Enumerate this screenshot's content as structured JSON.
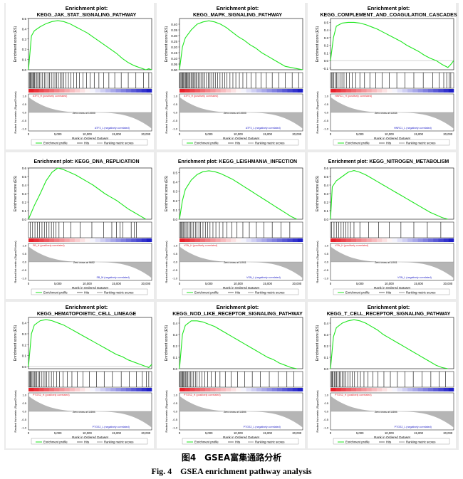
{
  "figure": {
    "caption_cn": "图4　GSEA富集通路分析",
    "caption_en": "Fig. 4　GSEA enrichment pathway analysis"
  },
  "colors": {
    "curve": "#1ee61e",
    "hits": "#000000",
    "metric_fill": "#a8a8a8",
    "pos": "#e8202a",
    "neg": "#2020c8"
  },
  "common": {
    "es_ylabel": "Enrichment score (ES)",
    "metric_ylabel": "Ranked list metric (Signal2Noise)",
    "xlabel": "Rank in Ordered Dataset",
    "legend": [
      "Enrichment profile",
      "Hits",
      "Ranking metric scores"
    ],
    "x_ticks": [
      "0",
      "5,000",
      "10,000",
      "15,000",
      "20,000"
    ],
    "metric_ticks": [
      "1.0",
      "0.5",
      "0.0",
      "-0.5",
      "-1.0"
    ]
  },
  "chart_data": [
    {
      "type": "line",
      "title_top": "Enrichment plot:",
      "title": "KEGG_JAK_STAT_SIGNALING_PATHWAY",
      "ylim": [
        0,
        0.5
      ],
      "y_ticks": [
        "0.5",
        "0.4",
        "0.3",
        "0.2",
        "0.1",
        "0.0"
      ],
      "pos_label": "ATF3_H (positively correlated)",
      "neg_label": "ATF3_L (negatively correlated)",
      "zero_cross": "Zero cross at 10000",
      "x": [
        0,
        500,
        1000,
        2000,
        3000,
        4000,
        5000,
        6000,
        7000,
        8000,
        9000,
        10000,
        11000,
        12000,
        13000,
        14000,
        15000,
        16000,
        17000,
        18000,
        19000,
        20000,
        20500,
        21000
      ],
      "y": [
        0,
        0.33,
        0.38,
        0.42,
        0.45,
        0.47,
        0.48,
        0.47,
        0.45,
        0.42,
        0.39,
        0.36,
        0.32,
        0.28,
        0.24,
        0.2,
        0.16,
        0.11,
        0.07,
        0.04,
        0.02,
        0.0,
        0.01,
        0.0
      ],
      "hits": [
        150,
        300,
        450,
        600,
        750,
        900,
        1050,
        1250,
        1450,
        1650,
        1900,
        2150,
        2400,
        2700,
        3000,
        3300,
        3600,
        3900,
        4200,
        4500,
        4800,
        5100,
        5400,
        5700,
        6000,
        6400,
        6800,
        7200,
        7700,
        8200,
        8700,
        9300,
        9900,
        10500,
        11200,
        12000,
        12800,
        13700,
        14700,
        15800,
        17000,
        18300,
        19600,
        20500
      ]
    },
    {
      "type": "line",
      "title_top": "Enrichment plot:",
      "title": "KEGG_MAPK_SIGNALING_PATHWAY",
      "ylim": [
        0,
        0.45
      ],
      "y_ticks": [
        "0.40",
        "0.35",
        "0.30",
        "0.25",
        "0.20",
        "0.15",
        "0.10",
        "0.05",
        "0.00"
      ],
      "pos_label": "ATF3_H (positively correlated)",
      "neg_label": "ATF3_L (negatively correlated)",
      "zero_cross": "Zero cross at 10000",
      "x": [
        0,
        500,
        1000,
        2000,
        3000,
        4000,
        5000,
        6000,
        7000,
        8000,
        9000,
        10000,
        11000,
        12000,
        13000,
        14000,
        15000,
        16000,
        17000,
        18000,
        19000,
        20000,
        21000
      ],
      "y": [
        0,
        0.2,
        0.28,
        0.35,
        0.4,
        0.42,
        0.43,
        0.42,
        0.4,
        0.37,
        0.33,
        0.29,
        0.26,
        0.22,
        0.19,
        0.15,
        0.12,
        0.09,
        0.06,
        0.03,
        0.02,
        0.01,
        0.0
      ],
      "hits": [
        100,
        250,
        400,
        550,
        700,
        850,
        1000,
        1150,
        1300,
        1450,
        1600,
        1800,
        2000,
        2200,
        2400,
        2600,
        2800,
        3000,
        3250,
        3500,
        3750,
        4000,
        4300,
        4600,
        4900,
        5200,
        5500,
        5800,
        6100,
        6500,
        6900,
        7300,
        7700,
        8100,
        8600,
        9100,
        9600,
        10200,
        10800,
        11500,
        12200,
        13000,
        13900,
        14800,
        15800,
        16900,
        18000,
        19200,
        20300
      ]
    },
    {
      "type": "line",
      "title_top": "Enrichment plot:",
      "title": "KEGG_COMPLEMENT_AND_COAGULATION_CASCADES",
      "ylim": [
        -0.12,
        0.55
      ],
      "y_ticks": [
        "0.5",
        "0.4",
        "0.3",
        "0.2",
        "0.1",
        "0.0",
        "-0.1"
      ],
      "pos_label": "HNRC1_H (positively correlated)",
      "neg_label": "HNRC1_L (negatively correlated)",
      "zero_cross": "Zero cross at 11434",
      "x": [
        0,
        500,
        1000,
        2000,
        3000,
        4000,
        5000,
        6000,
        7000,
        8000,
        9000,
        10000,
        11000,
        12000,
        13000,
        14000,
        15000,
        16000,
        17000,
        18000,
        19000,
        20000,
        20500,
        21000
      ],
      "y": [
        0,
        0.3,
        0.45,
        0.49,
        0.5,
        0.5,
        0.49,
        0.47,
        0.44,
        0.41,
        0.37,
        0.33,
        0.29,
        0.25,
        0.2,
        0.16,
        0.12,
        0.07,
        0.03,
        0.0,
        -0.05,
        -0.09,
        -0.05,
        0.0
      ],
      "hits": [
        150,
        350,
        550,
        800,
        1050,
        1300,
        1600,
        1950,
        2300,
        2700,
        3200,
        3700,
        4300,
        5000,
        5800,
        6700,
        7700,
        8800,
        10000,
        11300,
        12700,
        14200,
        15800,
        17400,
        18500,
        19300,
        19800,
        20200,
        20500
      ]
    },
    {
      "type": "line",
      "title_top": "",
      "title": "Enrichment plot: KEGG_DNA_REPLICATION",
      "ylim": [
        0,
        0.6
      ],
      "y_ticks": [
        "0.6",
        "0.5",
        "0.4",
        "0.3",
        "0.2",
        "0.1",
        "0.0"
      ],
      "pos_label": "SB_H (positively correlated)",
      "neg_label": "SB_M (negatively correlated)",
      "zero_cross": "Zero cross at 9652",
      "x": [
        0,
        500,
        1000,
        2000,
        3000,
        4000,
        5000,
        6000,
        7000,
        8000,
        9000,
        10000,
        11000,
        12000,
        13000,
        14000,
        15000,
        16000,
        17000,
        18000,
        19000,
        20000
      ],
      "y": [
        0,
        0.08,
        0.16,
        0.3,
        0.45,
        0.55,
        0.6,
        0.58,
        0.55,
        0.52,
        0.48,
        0.44,
        0.4,
        0.35,
        0.3,
        0.26,
        0.22,
        0.17,
        0.12,
        0.08,
        0.04,
        0.0
      ],
      "hits": [
        300,
        700,
        1100,
        1500,
        1900,
        2300,
        2700,
        3100,
        3500,
        3900,
        4300,
        4700,
        5200,
        6000,
        7200,
        8800,
        10800,
        12800,
        14200,
        15000,
        15600,
        16100,
        17500,
        18000,
        18400
      ]
    },
    {
      "type": "line",
      "title_top": "",
      "title": "Enrichment plot: KEGG_LEISHMANIA_INFECTION",
      "ylim": [
        0,
        0.55
      ],
      "y_ticks": [
        "0.5",
        "0.4",
        "0.3",
        "0.2",
        "0.1",
        "0.0"
      ],
      "pos_label": "VSN_H (positively correlated)",
      "neg_label": "VSN_L (negatively correlated)",
      "zero_cross": "Zero cross at 11931",
      "x": [
        0,
        500,
        1000,
        2000,
        3000,
        4000,
        5000,
        6000,
        7000,
        8000,
        9000,
        10000,
        11000,
        12000,
        13000,
        14000,
        15000,
        16000,
        17000,
        18000,
        19000,
        20000
      ],
      "y": [
        0,
        0.2,
        0.32,
        0.42,
        0.48,
        0.51,
        0.52,
        0.51,
        0.49,
        0.46,
        0.43,
        0.39,
        0.35,
        0.31,
        0.27,
        0.23,
        0.19,
        0.15,
        0.11,
        0.07,
        0.03,
        0.0
      ],
      "hits": [
        150,
        300,
        500,
        700,
        900,
        1100,
        1350,
        1600,
        1850,
        2100,
        2400,
        2700,
        3000,
        3300,
        3600,
        4000,
        4400,
        4800,
        5200,
        5700,
        6200,
        6800,
        7400,
        8100,
        8900,
        9800,
        10800,
        11900,
        13100,
        14400,
        15800,
        17300,
        18800
      ]
    },
    {
      "type": "line",
      "title_top": "",
      "title": "Enrichment plot: KEGG_NITROGEN_METABOLISM",
      "ylim": [
        0,
        0.6
      ],
      "y_ticks": [
        "0.6",
        "0.5",
        "0.4",
        "0.3",
        "0.2",
        "0.1",
        "0.0"
      ],
      "pos_label": "VSN_H (positively correlated)",
      "neg_label": "VSN_L (negatively correlated)",
      "zero_cross": "Zero cross at 11931",
      "x": [
        0,
        300,
        1000,
        2000,
        3000,
        4000,
        5000,
        6000,
        7000,
        8000,
        9000,
        10000,
        11000,
        12000,
        13000,
        14000,
        15000,
        16000,
        17000,
        18000,
        19000,
        20000
      ],
      "y": [
        0,
        0.38,
        0.45,
        0.5,
        0.55,
        0.57,
        0.55,
        0.52,
        0.48,
        0.44,
        0.4,
        0.36,
        0.32,
        0.28,
        0.24,
        0.2,
        0.16,
        0.12,
        0.08,
        0.05,
        0.02,
        0.0
      ],
      "hits": [
        200,
        600,
        1000,
        1400,
        1800,
        2200,
        2600,
        3000,
        3400,
        4000,
        5000,
        6500,
        8200,
        10000,
        12000,
        14200,
        16500,
        18800
      ]
    },
    {
      "type": "line",
      "title_top": "Enrichment plot:",
      "title": "KEGG_HEMATOPOIETIC_CELL_LINEAGE",
      "ylim": [
        -0.02,
        0.45
      ],
      "y_ticks": [
        "0.4",
        "0.3",
        "0.2",
        "0.1",
        "0.0"
      ],
      "pos_label": "PTGS2_H (positively correlated)",
      "neg_label": "PTGS2_L (negatively correlated)",
      "zero_cross": "Zero cross at 11694",
      "x": [
        0,
        500,
        1000,
        2000,
        3000,
        4000,
        5000,
        6000,
        7000,
        8000,
        9000,
        10000,
        11000,
        12000,
        13000,
        14000,
        15000,
        16000,
        17000,
        18000,
        19000,
        20000,
        20500,
        21000
      ],
      "y": [
        0,
        0.3,
        0.38,
        0.42,
        0.43,
        0.42,
        0.4,
        0.38,
        0.35,
        0.32,
        0.29,
        0.26,
        0.23,
        0.2,
        0.17,
        0.14,
        0.11,
        0.09,
        0.06,
        0.04,
        0.02,
        0.0,
        -0.01,
        0.02
      ],
      "hits": [
        150,
        300,
        450,
        600,
        800,
        1000,
        1200,
        1400,
        1650,
        1900,
        2200,
        2500,
        2800,
        3100,
        3500,
        3900,
        4300,
        4800,
        5300,
        5900,
        6600,
        7400,
        8300,
        9300,
        10400,
        11600,
        12900,
        14300,
        15800,
        17200,
        18400,
        19400,
        20100,
        20500
      ]
    },
    {
      "type": "line",
      "title_top": "Enrichment plot:",
      "title": "KEGG_NOD_LIKE_RECEPTOR_SIGNALING_PATHWAY",
      "ylim": [
        0,
        0.45
      ],
      "y_ticks": [
        "0.4",
        "0.3",
        "0.2",
        "0.1",
        "0.0"
      ],
      "pos_label": "PTGS2_H (positively correlated)",
      "neg_label": "PTGS2_L (negatively correlated)",
      "zero_cross": "Zero cross at 11694",
      "x": [
        0,
        500,
        1000,
        2000,
        3000,
        4000,
        5000,
        6000,
        7000,
        8000,
        9000,
        10000,
        11000,
        12000,
        13000,
        14000,
        15000,
        16000,
        17000,
        18000,
        19000,
        20000
      ],
      "y": [
        0,
        0.3,
        0.38,
        0.42,
        0.42,
        0.41,
        0.39,
        0.37,
        0.34,
        0.31,
        0.28,
        0.25,
        0.22,
        0.19,
        0.16,
        0.13,
        0.1,
        0.08,
        0.05,
        0.03,
        0.01,
        0.0
      ],
      "hits": [
        100,
        250,
        400,
        550,
        700,
        850,
        1000,
        1200,
        1400,
        1600,
        1850,
        2100,
        2400,
        2700,
        3000,
        3400,
        3800,
        4300,
        4800,
        5400,
        6100,
        6900,
        7800,
        8800,
        9900,
        11100,
        12400,
        13800,
        15300,
        16800,
        18300,
        19500
      ]
    },
    {
      "type": "line",
      "title_top": "Enrichment plot:",
      "title": "KEGG_T_CELL_RECEPTOR_SIGNALING_PATHWAY",
      "ylim": [
        0,
        0.45
      ],
      "y_ticks": [
        "0.4",
        "0.3",
        "0.2",
        "0.1",
        "0.0"
      ],
      "pos_label": "PTGS2_H (positively correlated)",
      "neg_label": "PTGS2_L (negatively correlated)",
      "zero_cross": "Zero cross at 11694",
      "x": [
        0,
        500,
        1000,
        2000,
        3000,
        4000,
        5000,
        6000,
        7000,
        8000,
        9000,
        10000,
        11000,
        12000,
        13000,
        14000,
        15000,
        16000,
        17000,
        18000,
        19000,
        20000
      ],
      "y": [
        0,
        0.28,
        0.36,
        0.4,
        0.42,
        0.43,
        0.42,
        0.4,
        0.37,
        0.34,
        0.3,
        0.27,
        0.24,
        0.21,
        0.18,
        0.15,
        0.12,
        0.09,
        0.06,
        0.03,
        0.01,
        0.0
      ],
      "hits": [
        150,
        300,
        450,
        650,
        850,
        1050,
        1250,
        1500,
        1750,
        2000,
        2300,
        2600,
        2950,
        3300,
        3700,
        4100,
        4600,
        5100,
        5700,
        6400,
        7200,
        8100,
        9100,
        10200,
        11400,
        12700,
        14100,
        15600,
        17100,
        18500,
        19600
      ]
    }
  ]
}
